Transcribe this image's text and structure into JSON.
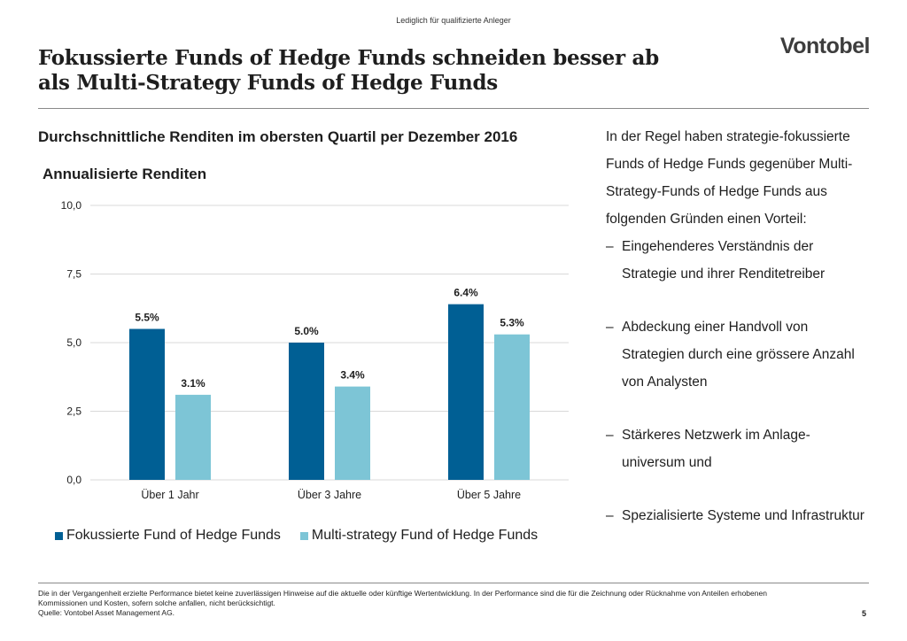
{
  "header": {
    "classification": "Lediglich für qualifizierte Anleger",
    "title_line1": "Fokussierte Funds of Hedge Funds schneiden besser ab",
    "title_line2": "als Multi-Strategy Funds of Hedge Funds",
    "logo": "Vontobel"
  },
  "subtitle": "Durchschnittliche Renditen im obersten Quartil per Dezember 2016",
  "colors": {
    "focused": "#005f94",
    "multi": "#7dc5d6",
    "rule": "#8a8a8a",
    "grid": "#d9d9d9"
  },
  "chart_data": {
    "type": "bar",
    "title": "Annualisierte Renditen",
    "categories": [
      "Über 1 Jahr",
      "Über 3 Jahre",
      "Über 5 Jahre"
    ],
    "series": [
      {
        "name": "Fokussierte Fund of Hedge Funds",
        "values": [
          5.5,
          5.0,
          6.4
        ],
        "labels": [
          "5.5%",
          "5.0%",
          "6.4%"
        ]
      },
      {
        "name": "Multi-strategy Fund of Hedge Funds",
        "values": [
          3.1,
          3.4,
          5.3
        ],
        "labels": [
          "3.1%",
          "3.4%",
          "5.3%"
        ]
      }
    ],
    "ylim": [
      0,
      10
    ],
    "yticks": [
      0,
      2.5,
      5,
      7.5,
      10
    ],
    "ytick_labels": [
      "0,0",
      "2,5",
      "5,0",
      "7,5",
      "10,0"
    ],
    "grid": true,
    "legend": "bottom"
  },
  "text": {
    "intro": "In der Regel haben strategie-fokussierte Funds of Hedge Funds gegenüber Multi-Strategy-Funds of Hedge Funds aus folgenden Gründen einen Vorteil:",
    "reasons": [
      "Eingehenderes Verständnis der Strategie und ihrer Renditetreiber",
      "Abdeckung einer Handvoll von Strategien durch eine grössere Anzahl von Analysten",
      "Stärkeres Netzwerk im Anlage-universum und",
      "Spezialisierte Systeme und Infrastruktur"
    ],
    "dash": "–"
  },
  "footer": {
    "disclaimer": "Die in der Vergangenheit erzielte Performance bietet keine zuverlässigen Hinweise auf die aktuelle oder künftige Wertentwicklung. In der Performance sind die für die Zeichnung oder Rücknahme von Anteilen erhobenen Kommissionen und Kosten, sofern solche anfallen, nicht berücksichtigt.",
    "source": "Quelle: Vontobel Asset Management AG.",
    "page": "5"
  }
}
